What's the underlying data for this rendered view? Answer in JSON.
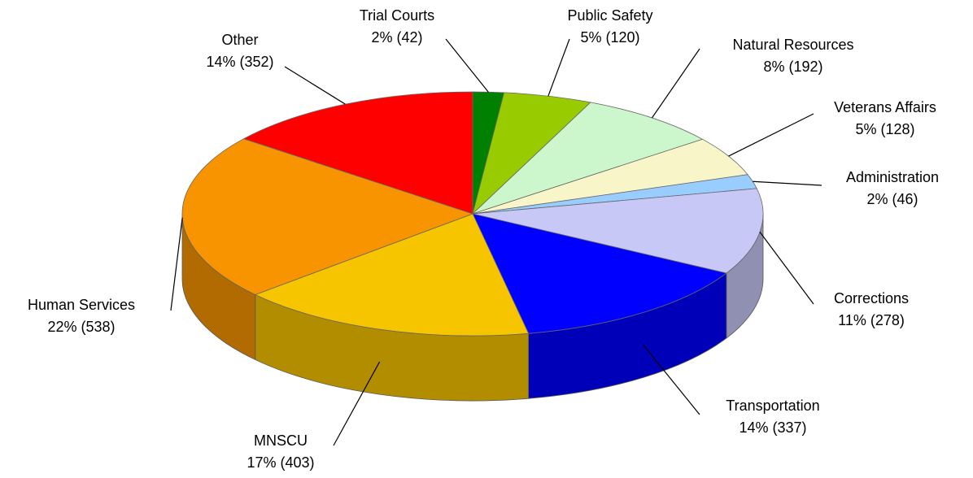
{
  "chart_data": {
    "type": "pie3d",
    "labels": [
      "Trial Courts",
      "Public Safety",
      "Natural Resources",
      "Veterans Affairs",
      "Administration",
      "Corrections",
      "Transportation",
      "MNSCU",
      "Human Services",
      "Other"
    ],
    "values": [
      42,
      120,
      192,
      128,
      46,
      278,
      337,
      403,
      538,
      352
    ],
    "value_labels": [
      "2% (42)",
      "5% (120)",
      "8% (192)",
      "5% (128)",
      "2% (46)",
      "11% (278)",
      "14% (337)",
      "17% (403)",
      "22% (538)",
      "14% (352)"
    ],
    "colors": [
      "#008000",
      "#99cc00",
      "#ccf7cc",
      "#f8f6c8",
      "#99ccff",
      "#c8c8f7",
      "#0000ff",
      "#f7c400",
      "#f79400",
      "#ff0000"
    ]
  }
}
